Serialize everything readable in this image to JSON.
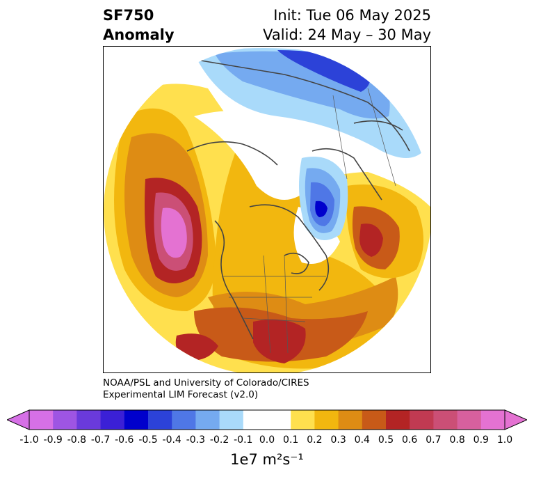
{
  "title": {
    "variable": "SF750",
    "subtitle": "Anomaly",
    "init": "Init: Tue 06 May 2025",
    "valid": "Valid: 24 May – 30 May"
  },
  "credit": {
    "line1": "NOAA/PSL and University of Colorado/CIRES",
    "line2": "Experimental LIM Forecast (v2.0)"
  },
  "colorbar": {
    "units": "1e7 m²s⁻¹",
    "tick_labels": [
      "-1.0",
      "-0.9",
      "-0.8",
      "-0.7",
      "-0.6",
      "-0.5",
      "-0.4",
      "-0.3",
      "-0.2",
      "-0.1",
      "0.0",
      "0.1",
      "0.2",
      "0.3",
      "0.4",
      "0.5",
      "0.6",
      "0.7",
      "0.8",
      "0.9",
      "1.0"
    ],
    "colors": [
      "#d670e6",
      "#9e55e3",
      "#6a3adb",
      "#3b20d6",
      "#0000cc",
      "#2c42d8",
      "#4f77e6",
      "#75aaf0",
      "#a9dafa",
      "#ffffff",
      "#ffffff",
      "#ffe04e",
      "#f2b70f",
      "#de8c14",
      "#c85a18",
      "#b32424",
      "#c13a52",
      "#cb4f76",
      "#d7609e",
      "#e472d2"
    ],
    "extend_low_color": "#d670e6",
    "extend_high_color": "#e472d2"
  },
  "map": {
    "projection": "north-polar-stereographic",
    "features": {
      "ridge_pacific_max": "#e472d2",
      "ridge_europe_max": "#b32424",
      "trough_scandinavia_min": "#0000cc",
      "trough_siberia_min": "#2c42d8"
    }
  }
}
